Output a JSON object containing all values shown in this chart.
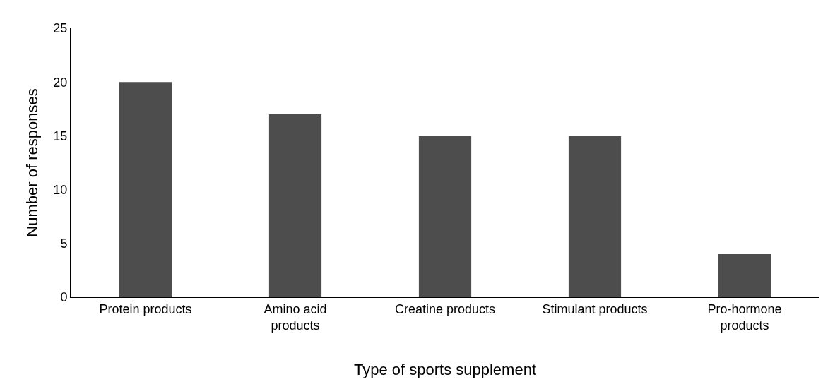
{
  "chart_data": {
    "type": "bar",
    "xlabel": "Type of sports supplement",
    "ylabel": "Number of responses",
    "categories": [
      "Protein products",
      "Amino acid products",
      "Creatine products",
      "Stimulant products",
      "Pro-hormone products"
    ],
    "values": [
      20,
      17,
      15,
      15,
      4
    ],
    "color": "#4d4d4d",
    "ylim": [
      0,
      25
    ],
    "yticks": [
      0,
      5,
      10,
      15,
      20,
      25
    ]
  }
}
